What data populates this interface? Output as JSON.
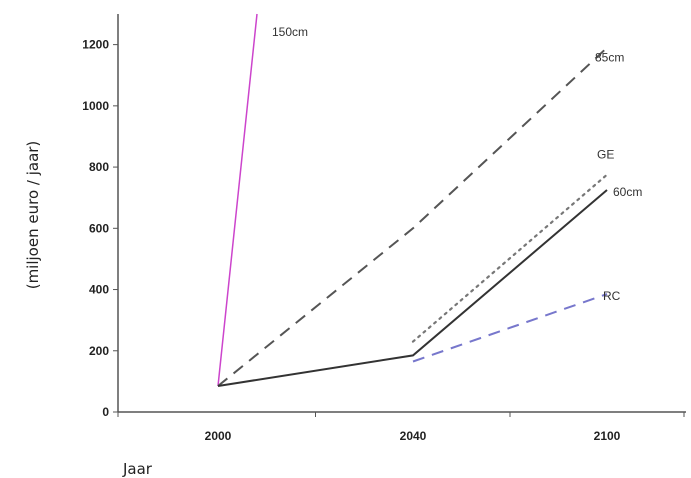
{
  "chart_data": {
    "type": "line",
    "xlabel": "Jaar",
    "ylabel": "(miljoen euro / jaar)",
    "ylim": [
      0,
      1300
    ],
    "yticks": [
      "0",
      "200",
      "400",
      "600",
      "800",
      "1000",
      "1200"
    ],
    "categories": [
      "2000",
      "2040",
      "2100"
    ],
    "grid": false,
    "series": [
      {
        "name": "150cm",
        "color": "#cc44cc",
        "dash": "solid",
        "points": [
          {
            "x": 2000,
            "y": 85
          },
          {
            "x": 2008,
            "y": 1300
          }
        ]
      },
      {
        "name": "85cm",
        "color": "#555555",
        "dash": "dashed",
        "points": [
          {
            "x": 2000,
            "y": 85
          },
          {
            "x": 2040,
            "y": 600
          },
          {
            "x": 2100,
            "y": 1190
          }
        ]
      },
      {
        "name": "GE",
        "color": "#777777",
        "dash": "dotted",
        "points": [
          {
            "x": 2040,
            "y": 230
          },
          {
            "x": 2100,
            "y": 775
          }
        ]
      },
      {
        "name": "60cm",
        "color": "#333333",
        "dash": "solid",
        "points": [
          {
            "x": 2000,
            "y": 85
          },
          {
            "x": 2040,
            "y": 185
          },
          {
            "x": 2100,
            "y": 725
          }
        ]
      },
      {
        "name": "RC",
        "color": "#7777cc",
        "dash": "dashed",
        "points": [
          {
            "x": 2040,
            "y": 165
          },
          {
            "x": 2100,
            "y": 385
          }
        ]
      }
    ]
  }
}
